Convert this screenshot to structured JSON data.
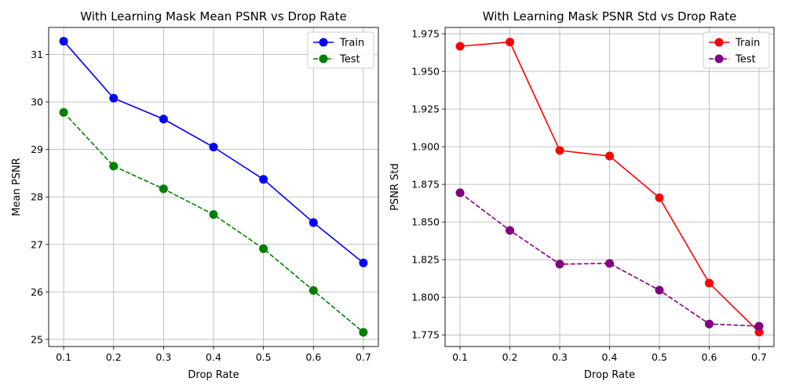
{
  "chart_data": [
    {
      "type": "line",
      "title": "With Learning Mask Mean PSNR vs Drop Rate",
      "xlabel": "Drop Rate",
      "ylabel": "Mean PSNR",
      "x": [
        0.1,
        0.2,
        0.3,
        0.4,
        0.5,
        0.6,
        0.7
      ],
      "x_ticks": [
        "0.1",
        "0.2",
        "0.3",
        "0.4",
        "0.5",
        "0.6",
        "0.7"
      ],
      "y_ticks": [
        "25",
        "26",
        "27",
        "28",
        "29",
        "30",
        "31"
      ],
      "xlim": [
        0.07,
        0.73
      ],
      "ylim": [
        24.85,
        31.57
      ],
      "grid": true,
      "legend": "top-right",
      "series": [
        {
          "name": "Train",
          "values": [
            31.28,
            30.08,
            29.64,
            29.05,
            28.37,
            27.46,
            26.61
          ],
          "color": "#0000ff",
          "dashed": false
        },
        {
          "name": "Test",
          "values": [
            29.78,
            28.65,
            28.17,
            27.63,
            26.91,
            26.03,
            25.15
          ],
          "color": "#008000",
          "dashed": true
        }
      ]
    },
    {
      "type": "line",
      "title": "With Learning Mask PSNR Std vs Drop Rate",
      "xlabel": "Drop Rate",
      "ylabel": "PSNR Std",
      "x": [
        0.1,
        0.2,
        0.3,
        0.4,
        0.5,
        0.6,
        0.7
      ],
      "x_ticks": [
        "0.1",
        "0.2",
        "0.3",
        "0.4",
        "0.5",
        "0.6",
        "0.7"
      ],
      "y_ticks": [
        "1.775",
        "1.800",
        "1.825",
        "1.850",
        "1.875",
        "1.900",
        "1.925",
        "1.950",
        "1.975"
      ],
      "xlim": [
        0.07,
        0.73
      ],
      "ylim": [
        1.7673,
        1.9792
      ],
      "grid": true,
      "legend": "top-right",
      "series": [
        {
          "name": "Train",
          "values": [
            1.9667,
            1.9695,
            1.8975,
            1.8938,
            1.8661,
            1.8094,
            1.7769
          ],
          "color": "#ff0000",
          "dashed": false
        },
        {
          "name": "Test",
          "values": [
            1.8694,
            1.8444,
            1.822,
            1.8225,
            1.8047,
            1.7823,
            1.7808
          ],
          "color": "#800080",
          "dashed": true
        }
      ]
    }
  ]
}
